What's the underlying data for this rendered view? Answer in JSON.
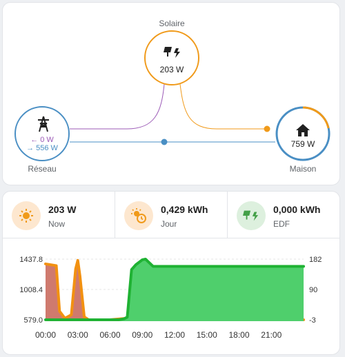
{
  "flow": {
    "solar": {
      "label": "Solaire",
      "value": "203 W",
      "icon": "solar-power-icon",
      "color": "#f09a1a"
    },
    "grid": {
      "label": "Réseau",
      "in": "← 0 W",
      "out": "→ 556 W",
      "icon": "transmission-tower-icon",
      "color": "#4a8fc4",
      "in_color": "#9b59b6"
    },
    "home": {
      "label": "Maison",
      "value": "759 W",
      "icon": "home-icon",
      "color": "#4a8fc4"
    }
  },
  "stats": [
    {
      "value": "203 W",
      "label": "Now",
      "icon": "sun-icon",
      "bg": "#fde7cf",
      "color": "#f09a1a"
    },
    {
      "value": "0,429 kWh",
      "label": "Jour",
      "icon": "sun-clock-icon",
      "bg": "#fde7cf",
      "color": "#f09a1a"
    },
    {
      "value": "0,000 kWh",
      "label": "EDF",
      "icon": "solar-power-icon",
      "bg": "#ddf0de",
      "color": "#43a047"
    }
  ],
  "chart_data": {
    "type": "area",
    "x_ticks": [
      "00:00",
      "03:00",
      "06:00",
      "09:00",
      "12:00",
      "15:00",
      "18:00",
      "21:00"
    ],
    "y_left_ticks": [
      "1437.8",
      "1008.4",
      "579.0"
    ],
    "y_right_ticks": [
      "182",
      "90",
      "-3"
    ],
    "ylim_left": [
      579.0,
      1437.8
    ],
    "ylim_right": [
      -3,
      182
    ],
    "series": [
      {
        "axis": "left",
        "color": "#f29111",
        "fill": "#cf7a6e",
        "points": [
          [
            0,
            1370
          ],
          [
            1,
            1345
          ],
          [
            1.3,
            700
          ],
          [
            1.8,
            600
          ],
          [
            2.4,
            650
          ],
          [
            2.8,
            1300
          ],
          [
            3.0,
            1420
          ],
          [
            3.2,
            1200
          ],
          [
            3.6,
            620
          ],
          [
            4,
            580
          ],
          [
            6,
            579
          ],
          [
            7.5,
            600
          ],
          [
            8,
            579
          ],
          [
            24,
            579
          ]
        ]
      },
      {
        "axis": "right",
        "color": "#1fb233",
        "fill": "#4fcf6c",
        "points": [
          [
            0,
            -3
          ],
          [
            6.8,
            -3
          ],
          [
            7.3,
            0
          ],
          [
            7.6,
            5
          ],
          [
            8.0,
            150
          ],
          [
            8.4,
            165
          ],
          [
            9.0,
            180
          ],
          [
            9.3,
            182
          ],
          [
            10,
            160
          ],
          [
            23.5,
            160
          ],
          [
            24,
            160
          ]
        ]
      }
    ]
  }
}
